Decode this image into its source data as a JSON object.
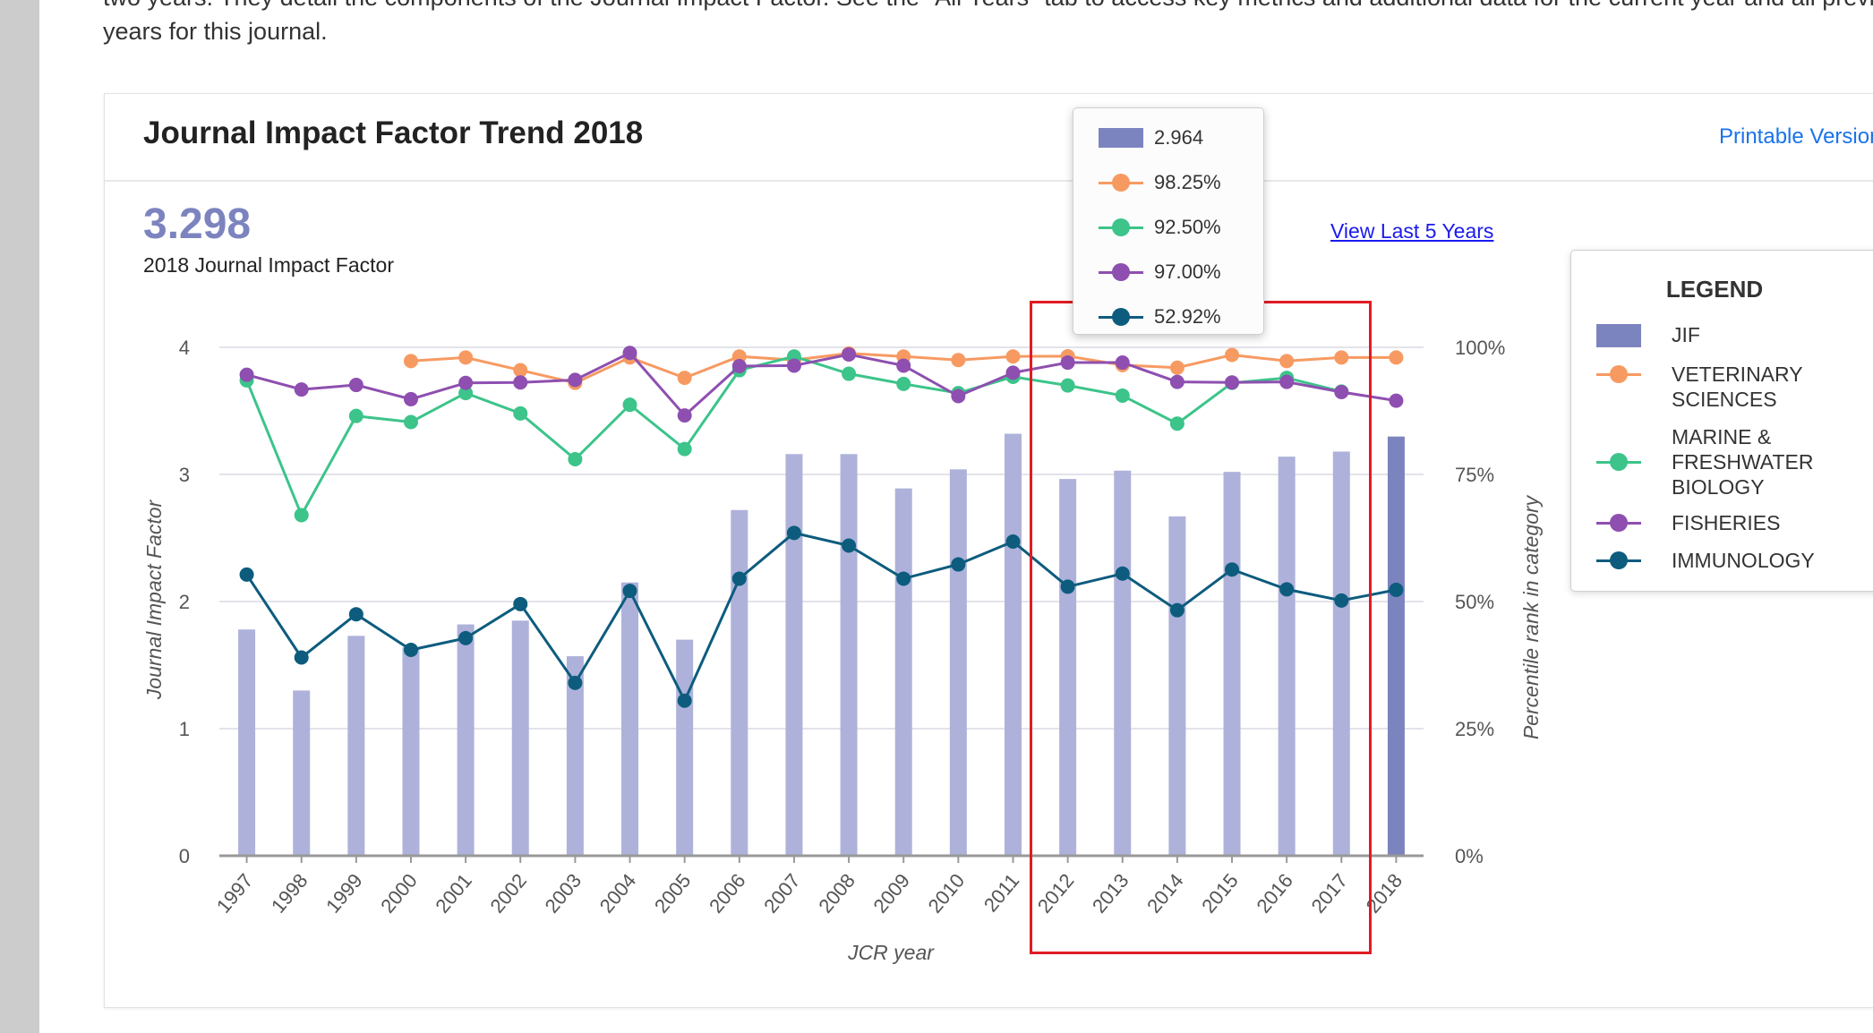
{
  "intro": {
    "line1": "two years. They detail the components of the Journal Impact Factor. See the \"All Years\" tab to access key metrics and additional data for the current year and all previous",
    "line2": "years for this journal."
  },
  "card": {
    "title": "Journal Impact Factor Trend 2018",
    "printable_label": "Printable Version",
    "jif_value": "3.298",
    "jif_caption": "2018 Journal Impact Factor",
    "last5_label": "View Last 5 Years"
  },
  "tooltip": {
    "rows": [
      {
        "series": "JIF",
        "value": "2.964"
      },
      {
        "series": "VETERINARY SCIENCES",
        "value": "98.25%"
      },
      {
        "series": "MARINE & FRESHWATER BIOLOGY",
        "value": "92.50%"
      },
      {
        "series": "FISHERIES",
        "value": "97.00%"
      },
      {
        "series": "IMMUNOLOGY",
        "value": "52.92%"
      }
    ]
  },
  "legend": {
    "title": "LEGEND",
    "items": [
      {
        "label": "JIF",
        "lines": [
          "JIF"
        ]
      },
      {
        "label": "VETERINARY SCIENCES",
        "lines": [
          "VETERINARY",
          "SCIENCES"
        ]
      },
      {
        "label": "MARINE & FRESHWATER BIOLOGY",
        "lines": [
          "MARINE &",
          "FRESHWATER",
          "BIOLOGY"
        ]
      },
      {
        "label": "FISHERIES",
        "lines": [
          "FISHERIES"
        ]
      },
      {
        "label": "IMMUNOLOGY",
        "lines": [
          "IMMUNOLOGY"
        ]
      }
    ]
  },
  "colors": {
    "jif_bar": "#aeb2da",
    "jif_bar_current": "#7c84bf",
    "veterinary": "#f79a62",
    "marine": "#3cc48a",
    "fisheries": "#8e4fb0",
    "immunology": "#0d5c7e",
    "highlight": "#e01b24",
    "link": "#1a73e8"
  },
  "chart_data": {
    "type": "bar",
    "xlabel": "JCR year",
    "ylabel": "Journal Impact Factor",
    "y2label": "Percentile rank in category",
    "categories": [
      "1997",
      "1998",
      "1999",
      "2000",
      "2001",
      "2002",
      "2003",
      "2004",
      "2005",
      "2006",
      "2007",
      "2008",
      "2009",
      "2010",
      "2011",
      "2012",
      "2013",
      "2014",
      "2015",
      "2016",
      "2017",
      "2018"
    ],
    "ylim": [
      0,
      4
    ],
    "y2lim": [
      0,
      100
    ],
    "yticks": [
      "0",
      "1",
      "2",
      "3",
      "4"
    ],
    "y2ticks": [
      "0%",
      "25%",
      "50%",
      "75%",
      "100%"
    ],
    "bars": {
      "name": "JIF",
      "values": [
        1.78,
        1.3,
        1.73,
        1.64,
        1.82,
        1.85,
        1.57,
        2.15,
        1.7,
        2.72,
        3.16,
        3.16,
        2.89,
        3.04,
        3.32,
        2.964,
        3.03,
        2.67,
        3.02,
        3.14,
        3.18,
        3.298
      ]
    },
    "series": [
      {
        "name": "VETERINARY SCIENCES",
        "axis": "y2",
        "values": [
          null,
          null,
          null,
          97.3,
          98.0,
          95.5,
          93.0,
          98.0,
          94.0,
          98.2,
          97.5,
          98.8,
          98.2,
          97.5,
          98.2,
          98.25,
          96.5,
          96.0,
          98.5,
          97.3,
          98.0,
          98.0
        ]
      },
      {
        "name": "MARINE & FRESHWATER BIOLOGY",
        "axis": "y2",
        "values": [
          93.5,
          67.0,
          86.5,
          85.3,
          91.0,
          87.0,
          78.0,
          88.7,
          80.0,
          95.5,
          98.2,
          94.8,
          92.8,
          91.0,
          94.2,
          92.5,
          90.5,
          85.0,
          93.0,
          94.0,
          91.3,
          null
        ]
      },
      {
        "name": "FISHERIES",
        "axis": "y2",
        "values": [
          94.6,
          91.7,
          92.6,
          89.8,
          93.0,
          93.1,
          93.6,
          98.9,
          86.6,
          96.3,
          96.4,
          98.6,
          96.4,
          90.4,
          95.0,
          97.0,
          97.0,
          93.2,
          93.1,
          93.2,
          91.2,
          89.5
        ]
      },
      {
        "name": "IMMUNOLOGY",
        "axis": "y2",
        "values": [
          55.3,
          39.0,
          47.5,
          40.5,
          42.8,
          49.5,
          34.0,
          52.1,
          30.5,
          54.5,
          63.5,
          61.0,
          54.5,
          57.3,
          61.8,
          52.92,
          55.5,
          48.3,
          56.3,
          52.4,
          50.2,
          52.3
        ]
      }
    ]
  }
}
